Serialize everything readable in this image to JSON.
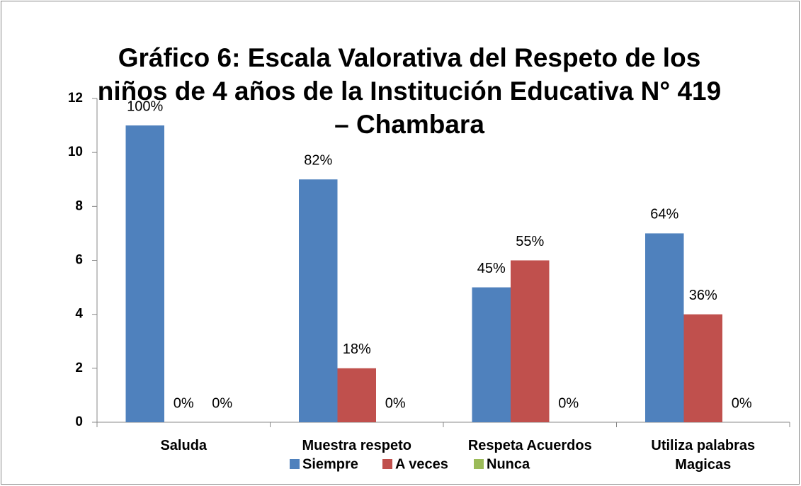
{
  "chart_data": {
    "type": "bar",
    "title": "Gráfico 6: Escala Valorativa del Respeto de los niños de 4 años de la Institución Educativa N° 419 – Chambara",
    "categories": [
      "Saluda",
      "Muestra respeto",
      "Respeta Acuerdos",
      "Utiliza palabras Magicas"
    ],
    "series": [
      {
        "name": "Siempre",
        "color": "#4f81bd",
        "values": [
          11,
          9,
          5,
          7
        ],
        "value_labels": [
          "100%",
          "82%",
          "45%",
          "64%"
        ]
      },
      {
        "name": "A veces",
        "color": "#c0504d",
        "values": [
          0,
          2,
          6,
          4
        ],
        "value_labels": [
          "0%",
          "18%",
          "55%",
          "36%"
        ]
      },
      {
        "name": "Nunca",
        "color": "#9bbb59",
        "values": [
          0,
          0,
          0,
          0
        ],
        "value_labels": [
          "0%",
          "0%",
          "0%",
          "0%"
        ]
      }
    ],
    "ylim": [
      0,
      12
    ],
    "yticks": [
      0,
      2,
      4,
      6,
      8,
      10,
      12
    ],
    "grid": false,
    "legend": "bottom"
  }
}
